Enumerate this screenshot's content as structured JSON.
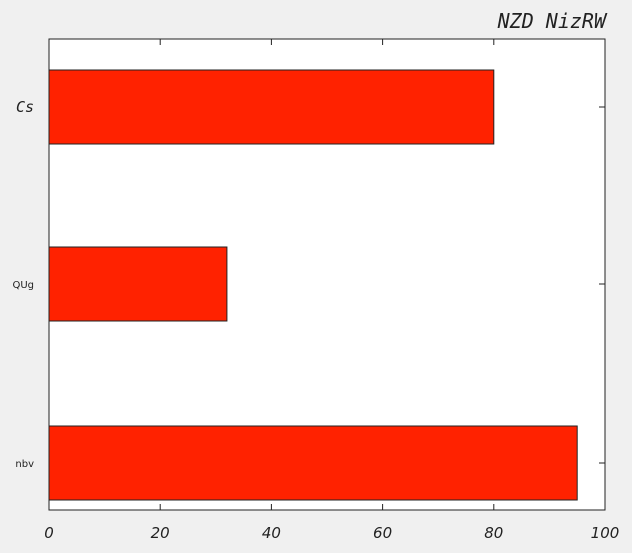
{
  "chart_data": {
    "type": "bar",
    "orientation": "horizontal",
    "title": "NZD  NizRW",
    "xlabel": "",
    "ylabel": "",
    "categories": [
      "nbv",
      "QUg",
      "Cs"
    ],
    "values": [
      95,
      32,
      80
    ],
    "xlim": [
      0,
      100
    ],
    "xticks": [
      "0",
      "20",
      "40",
      "60",
      "80",
      "100"
    ],
    "bar_color": "#ff2200",
    "grid": false,
    "legend": "none"
  }
}
